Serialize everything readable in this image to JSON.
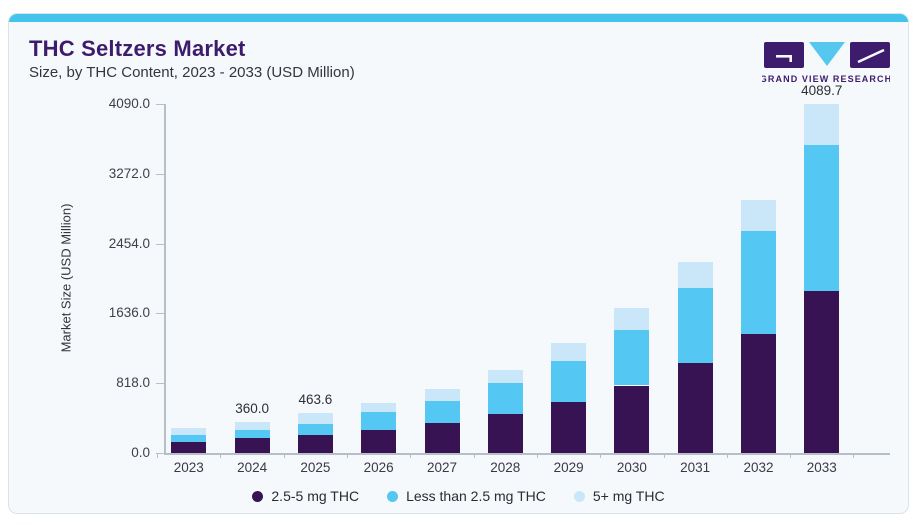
{
  "header": {
    "title": "THC Seltzers Market",
    "subtitle": "Size, by THC Content, 2023 - 2033 (USD Million)"
  },
  "logo": {
    "text": "GRAND VIEW RESEARCH"
  },
  "colors": {
    "accent_bar": "#44c3ec",
    "card_bg": "#f5f9fc",
    "card_border": "#dbe3ea",
    "title_text": "#3d1c6d",
    "axis": "#b6bfc8",
    "tick_text": "#3f3f49",
    "legend_text": "#2b2b33",
    "bar_dark_purple": "#371353",
    "bar_medium_blue": "#54c7f2",
    "bar_light_blue": "#c9e7f8",
    "logo_cyan": "#56c8f0"
  },
  "chart_data": {
    "type": "bar",
    "stacked": true,
    "title": "THC Seltzers Market",
    "subtitle": "Size, by THC Content, 2023 - 2033 (USD Million)",
    "xlabel": "",
    "ylabel": "Market Size (USD Million)",
    "categories": [
      "2023",
      "2024",
      "2025",
      "2026",
      "2027",
      "2028",
      "2029",
      "2030",
      "2031",
      "2032",
      "2033"
    ],
    "series": [
      {
        "name": "2.5-5 mg THC",
        "color": "#371353",
        "values": [
          130,
          170,
          210,
          274,
          354,
          462,
          602,
          791,
          1050,
          1395,
          1904
        ]
      },
      {
        "name": "Less than 2.5 mg THC",
        "color": "#54c7f2",
        "values": [
          82,
          95,
          130,
          207,
          258,
          357,
          480,
          646,
          884,
          1209,
          1702
        ]
      },
      {
        "name": "5+ mg THC",
        "color": "#c9e7f8",
        "values": [
          78,
          95,
          123.6,
          109,
          143,
          151,
          208,
          263,
          306,
          361,
          483.7
        ]
      }
    ],
    "totals": [
      290,
      360,
      463.6,
      590,
      755,
      970,
      1290,
      1700,
      2240,
      2965,
      4089.7
    ],
    "total_labels": {
      "2024": "360.0",
      "2025": "463.6",
      "2033": "4089.7"
    },
    "yticks": [
      0,
      818,
      1636,
      2454,
      3272,
      4090
    ],
    "ytick_labels": [
      "0.0",
      "818.0",
      "1636.0",
      "2454.0",
      "3272.0",
      "4090.0"
    ],
    "ylim": [
      0,
      4090
    ],
    "grid": false,
    "legend_position": "bottom"
  }
}
